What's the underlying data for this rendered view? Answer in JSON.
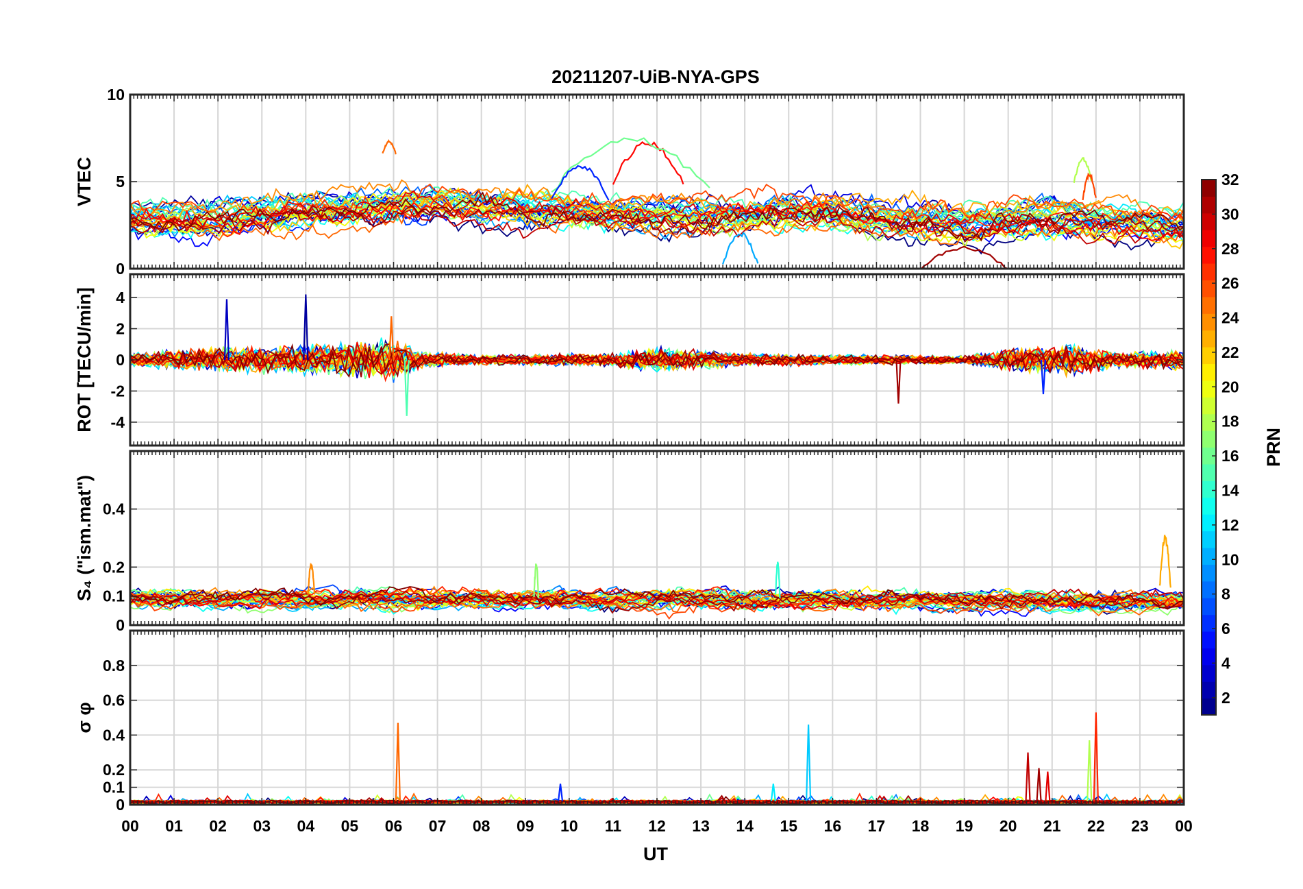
{
  "chart_data": {
    "type": "line",
    "title": "20211207-UiB-NYA-GPS",
    "xlabel": "UT",
    "x_tick_labels": [
      "00",
      "01",
      "02",
      "03",
      "04",
      "05",
      "06",
      "07",
      "08",
      "09",
      "10",
      "11",
      "12",
      "13",
      "14",
      "15",
      "16",
      "17",
      "18",
      "19",
      "20",
      "21",
      "22",
      "23",
      "00"
    ],
    "xlim_hours": [
      0,
      24
    ],
    "grid": true,
    "series_note": "one line per GPS satellite PRN 1-32, colored by PRN",
    "panels": [
      {
        "id": "vtec",
        "ylabel": "VTEC",
        "ylim": [
          0,
          10
        ],
        "y_ticks": [
          0,
          5,
          10
        ],
        "y_tick_labels": [
          "0",
          "5",
          "10"
        ],
        "baseline": [
          [
            0,
            3.0
          ],
          [
            2,
            2.8
          ],
          [
            3,
            3.2
          ],
          [
            4,
            3.3
          ],
          [
            5,
            3.4
          ],
          [
            6,
            3.6
          ],
          [
            7,
            3.8
          ],
          [
            8,
            3.6
          ],
          [
            9,
            3.5
          ],
          [
            10,
            3.3
          ],
          [
            11,
            3.2
          ],
          [
            12,
            3.2
          ],
          [
            13,
            3.2
          ],
          [
            14,
            3.3
          ],
          [
            15,
            3.4
          ],
          [
            16,
            3.3
          ],
          [
            17,
            3.0
          ],
          [
            18,
            2.8
          ],
          [
            19,
            2.5
          ],
          [
            20,
            2.8
          ],
          [
            21,
            3.0
          ],
          [
            22,
            2.7
          ],
          [
            23,
            2.6
          ],
          [
            24,
            2.5
          ]
        ],
        "features": [
          {
            "prn": 25,
            "x": [
              5.75,
              6.05
            ],
            "y": [
              6.6,
              7.3
            ]
          },
          {
            "prn": 28,
            "x": [
              11.0,
              12.6
            ],
            "y": [
              5.0,
              7.2
            ]
          },
          {
            "prn": 16,
            "x": [
              9.6,
              13.2
            ],
            "y": [
              4.5,
              7.5
            ]
          },
          {
            "prn": 6,
            "x": [
              9.6,
              10.9
            ],
            "y": [
              4.0,
              5.9
            ]
          },
          {
            "prn": 10,
            "x": [
              13.5,
              14.3
            ],
            "y": [
              0.3,
              2.0
            ]
          },
          {
            "prn": 18,
            "x": [
              21.5,
              21.9
            ],
            "y": [
              5.0,
              6.3
            ]
          },
          {
            "prn": 31,
            "x": [
              18.0,
              20.0
            ],
            "y": [
              0.0,
              1.2
            ]
          },
          {
            "prn": 26,
            "x": [
              21.7,
              22.0
            ],
            "y": [
              4.0,
              5.4
            ]
          }
        ]
      },
      {
        "id": "rot",
        "ylabel": "ROT [TECU/min]",
        "ylim": [
          -5.5,
          5.5
        ],
        "y_ticks": [
          -4,
          -2,
          0,
          2,
          4
        ],
        "y_tick_labels": [
          "-4",
          "-2",
          "0",
          "2",
          "4"
        ],
        "amplitude_profile": [
          [
            0,
            0.8
          ],
          [
            2,
            1.5
          ],
          [
            3,
            1.6
          ],
          [
            4,
            1.8
          ],
          [
            5,
            2.0
          ],
          [
            6,
            2.6
          ],
          [
            6.6,
            1.0
          ],
          [
            8,
            0.6
          ],
          [
            11,
            0.8
          ],
          [
            12,
            1.5
          ],
          [
            14,
            0.8
          ],
          [
            17,
            0.6
          ],
          [
            19,
            0.5
          ],
          [
            20.3,
            1.5
          ],
          [
            21.5,
            1.8
          ],
          [
            22.5,
            1.0
          ],
          [
            24,
            1.2
          ]
        ],
        "spikes": [
          {
            "prn": 3,
            "x": 2.2,
            "y": 3.9
          },
          {
            "prn": 2,
            "x": 4.0,
            "y": 4.2
          },
          {
            "prn": 15,
            "x": 6.3,
            "y": -3.6
          },
          {
            "prn": 25,
            "x": 5.95,
            "y": 2.8
          },
          {
            "prn": 31,
            "x": 17.5,
            "y": -2.8
          },
          {
            "prn": 6,
            "x": 20.8,
            "y": -2.2
          }
        ]
      },
      {
        "id": "s4",
        "ylabel": "S₄ (\"ism.mat\")",
        "ylim": [
          0,
          0.6
        ],
        "y_ticks": [
          0,
          0.1,
          0.2,
          0.4
        ],
        "y_tick_labels": [
          "0",
          "0.1",
          "0.2",
          "0.4"
        ],
        "baseline": [
          [
            0,
            0.08
          ],
          [
            24,
            0.07
          ]
        ],
        "features": [
          {
            "prn": 23,
            "x": [
              23.45,
              23.7
            ],
            "y": [
              0.13,
              0.3
            ]
          },
          {
            "prn": 24,
            "x": [
              4.05,
              4.2
            ],
            "y": [
              0.1,
              0.21
            ]
          },
          {
            "prn": 17,
            "x": [
              9.2,
              9.3
            ],
            "y": [
              0.1,
              0.21
            ]
          },
          {
            "prn": 14,
            "x": [
              14.7,
              14.8
            ],
            "y": [
              0.1,
              0.21
            ]
          }
        ]
      },
      {
        "id": "sigma_phi",
        "ylabel": "σ φ",
        "ylim": [
          0,
          1.0
        ],
        "y_ticks": [
          0,
          0.1,
          0.2,
          0.4,
          0.6,
          0.8
        ],
        "y_tick_labels": [
          "0",
          "0.1",
          "0.2",
          "0.4",
          "0.6",
          "0.8"
        ],
        "baseline": [
          [
            0,
            0.02
          ],
          [
            24,
            0.02
          ]
        ],
        "spikes": [
          {
            "prn": 25,
            "x": 6.1,
            "y": 0.47
          },
          {
            "prn": 11,
            "x": 15.45,
            "y": 0.46
          },
          {
            "prn": 12,
            "x": 14.65,
            "y": 0.12
          },
          {
            "prn": 6,
            "x": 9.8,
            "y": 0.12
          },
          {
            "prn": 30,
            "x": 20.45,
            "y": 0.3
          },
          {
            "prn": 31,
            "x": 20.7,
            "y": 0.21
          },
          {
            "prn": 29,
            "x": 20.9,
            "y": 0.19
          },
          {
            "prn": 27,
            "x": 22.0,
            "y": 0.53
          },
          {
            "prn": 18,
            "x": 21.85,
            "y": 0.37
          }
        ]
      }
    ],
    "colorbar": {
      "label": "PRN",
      "range": [
        1,
        32
      ],
      "tick_values": [
        2,
        4,
        6,
        8,
        10,
        12,
        14,
        16,
        18,
        20,
        22,
        24,
        26,
        28,
        30,
        32
      ],
      "tick_labels": [
        "2",
        "4",
        "6",
        "8",
        "10",
        "12",
        "14",
        "16",
        "18",
        "20",
        "22",
        "24",
        "26",
        "28",
        "30",
        "32"
      ],
      "colormap": "jet",
      "bands": 32
    }
  }
}
